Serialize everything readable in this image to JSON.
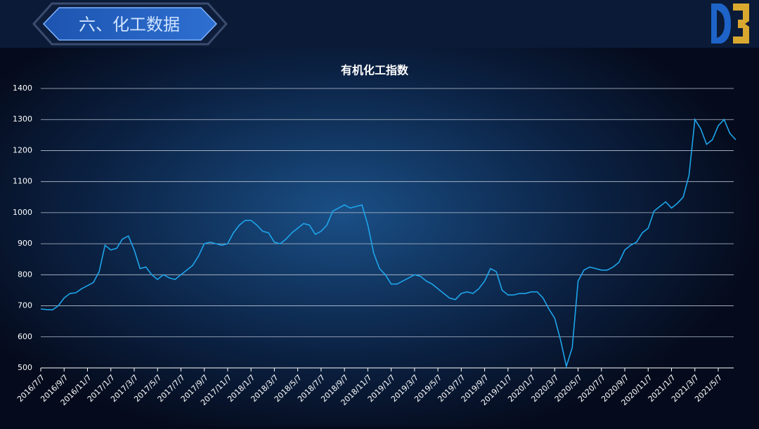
{
  "header": {
    "title": "六、化工数据"
  },
  "chart_data": {
    "type": "line",
    "title": "有机化工指数",
    "categories": [
      "2016/7/7",
      null,
      null,
      null,
      "2016/9/7",
      null,
      null,
      null,
      "2016/11/7",
      null,
      null,
      null,
      "2017/1/7",
      null,
      null,
      null,
      "2017/3/7",
      null,
      null,
      null,
      "2017/5/7",
      null,
      null,
      null,
      "2017/7/7",
      null,
      null,
      null,
      "2017/9/7",
      null,
      null,
      null,
      "2017/11/7",
      null,
      null,
      null,
      "2018/1/7",
      null,
      null,
      null,
      "2018/3/7",
      null,
      null,
      null,
      "2018/5/7",
      null,
      null,
      null,
      "2018/7/7",
      null,
      null,
      null,
      "2018/9/7",
      null,
      null,
      null,
      "2018/11/7",
      null,
      null,
      null,
      "2019/1/7",
      null,
      null,
      null,
      "2019/3/7",
      null,
      null,
      null,
      "2019/5/7",
      null,
      null,
      null,
      "2019/7/7",
      null,
      null,
      null,
      "2019/9/7",
      null,
      null,
      null,
      "2019/11/7",
      null,
      null,
      null,
      "2020/1/7",
      null,
      null,
      null,
      "2020/3/7",
      null,
      null,
      null,
      "2020/5/7",
      null,
      null,
      null,
      "2020/7/7",
      null,
      null,
      null,
      "2020/9/7",
      null,
      null,
      null,
      "2020/11/7",
      null,
      null,
      null,
      "2021/1/7",
      null,
      null,
      null,
      "2021/3/7",
      null,
      null,
      null,
      "2021/5/7",
      null,
      null,
      null
    ],
    "values": [
      690,
      688,
      687,
      700,
      725,
      740,
      742,
      755,
      765,
      775,
      810,
      895,
      880,
      885,
      915,
      925,
      880,
      820,
      825,
      800,
      785,
      800,
      790,
      785,
      800,
      815,
      830,
      860,
      900,
      905,
      900,
      895,
      900,
      935,
      960,
      975,
      975,
      960,
      940,
      935,
      905,
      900,
      915,
      935,
      950,
      965,
      960,
      930,
      940,
      960,
      1005,
      1015,
      1025,
      1015,
      1020,
      1025,
      960,
      870,
      820,
      800,
      770,
      770,
      780,
      790,
      800,
      795,
      780,
      770,
      755,
      740,
      725,
      720,
      740,
      745,
      740,
      755,
      780,
      820,
      810,
      750,
      735,
      735,
      740,
      740,
      745,
      745,
      725,
      690,
      660,
      590,
      505,
      565,
      780,
      815,
      825,
      820,
      815,
      815,
      825,
      840,
      880,
      895,
      905,
      935,
      950,
      1005,
      1020,
      1035,
      1015,
      1030,
      1050,
      1120,
      1300,
      1270,
      1220,
      1235,
      1280,
      1300,
      1255,
      1235
    ],
    "color": "#1ea4ea",
    "ylim": [
      500,
      1400
    ],
    "yticks": [
      500,
      600,
      700,
      800,
      900,
      1000,
      1100,
      1200,
      1300,
      1400
    ],
    "grid": true
  }
}
